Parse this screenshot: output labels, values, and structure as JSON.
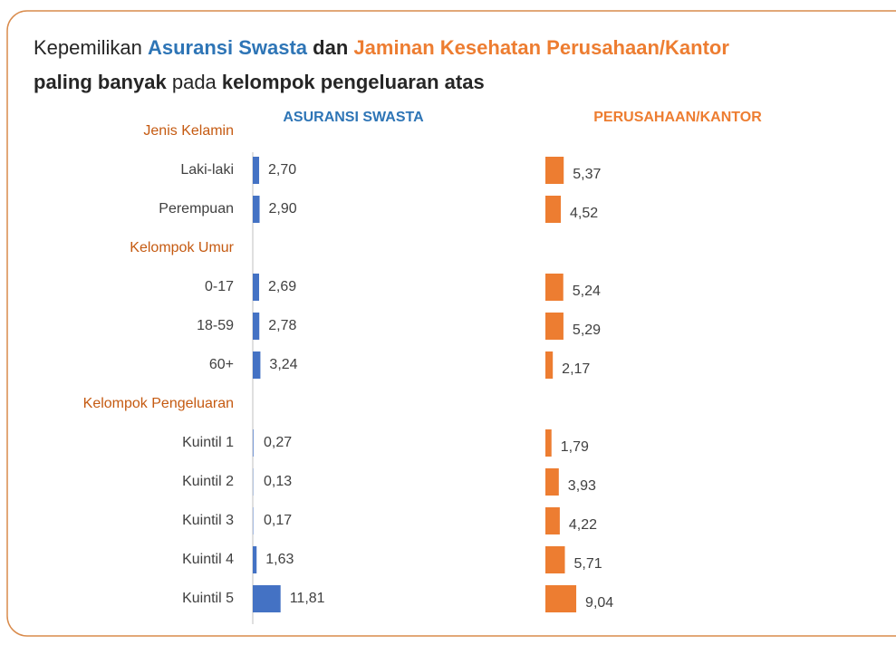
{
  "chart_data": {
    "type": "bar",
    "orientation": "horizontal",
    "title_lines": [
      [
        {
          "text": "Kepemilikan",
          "style": "normal"
        },
        {
          "text": "Asuransi Swasta",
          "style": "bold-blue"
        },
        {
          "text": "dan",
          "style": "bold"
        },
        {
          "text": "Jaminan Kesehatan Perusahaan/Kantor",
          "style": "bold-orange"
        }
      ],
      [
        {
          "text": "paling banyak",
          "style": "bold"
        },
        {
          "text": "pada",
          "style": "normal"
        },
        {
          "text": "kelompok pengeluaran atas",
          "style": "bold"
        }
      ]
    ],
    "groups": [
      {
        "name": "Jenis Kelamin",
        "categories": [
          "Laki-laki",
          "Perempuan"
        ]
      },
      {
        "name": "Kelompok Umur",
        "categories": [
          "0-17",
          "18-59",
          "60+"
        ]
      },
      {
        "name": "Kelompok Pengeluaran",
        "categories": [
          "Kuintil 1",
          "Kuintil 2",
          "Kuintil 3",
          "Kuintil 4",
          "Kuintil 5"
        ]
      }
    ],
    "series": [
      {
        "name": "ASURANSI SWASTA",
        "color": "#4472c4",
        "name_color": "#2e75b6",
        "xlim": [
          0,
          30
        ],
        "axis_line": true,
        "values": [
          [
            2.7,
            2.9
          ],
          [
            2.69,
            2.78,
            3.24
          ],
          [
            0.27,
            0.13,
            0.17,
            1.63,
            11.81
          ]
        ],
        "value_labels": [
          [
            "2,70",
            "2,90"
          ],
          [
            "2,69",
            "2,78",
            "3,24"
          ],
          [
            "0,27",
            "0,13",
            "0,17",
            "1,63",
            "11,81"
          ]
        ]
      },
      {
        "name": "PERUSAHAAN/KANTOR",
        "color": "#ed7d31",
        "name_color": "#ed7d31",
        "xlim": [
          0,
          30
        ],
        "axis_line": false,
        "values": [
          [
            5.37,
            4.52
          ],
          [
            5.24,
            5.29,
            2.17
          ],
          [
            1.79,
            3.93,
            4.22,
            5.71,
            9.04
          ]
        ],
        "value_labels": [
          [
            "5,37",
            "4,52"
          ],
          [
            "5,24",
            "5,29",
            "2,17"
          ],
          [
            "1,79",
            "3,93",
            "4,22",
            "5,71",
            "9,04"
          ]
        ]
      }
    ]
  }
}
